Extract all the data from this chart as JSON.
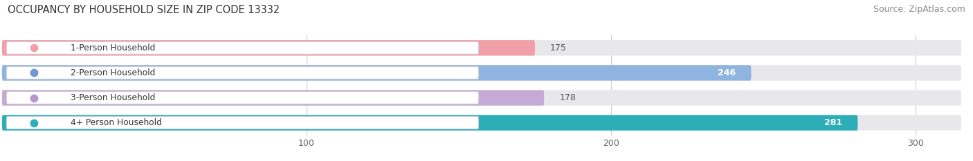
{
  "title": "OCCUPANCY BY HOUSEHOLD SIZE IN ZIP CODE 13332",
  "source": "Source: ZipAtlas.com",
  "categories": [
    "1-Person Household",
    "2-Person Household",
    "3-Person Household",
    "4+ Person Household"
  ],
  "values": [
    175,
    246,
    178,
    281
  ],
  "bar_colors": [
    "#f2a0a8",
    "#8fb4e0",
    "#c4aad4",
    "#2dadb8"
  ],
  "value_inside": [
    false,
    true,
    false,
    true
  ],
  "label_dot_colors": [
    "#f2a0a8",
    "#7098d0",
    "#b898cc",
    "#2dadb8"
  ],
  "bg_color": "#ffffff",
  "bar_bg_color": "#e8e8ec",
  "xlim": [
    0,
    315
  ],
  "xticks": [
    100,
    200,
    300
  ],
  "title_fontsize": 10.5,
  "source_fontsize": 9,
  "bar_height": 0.62
}
